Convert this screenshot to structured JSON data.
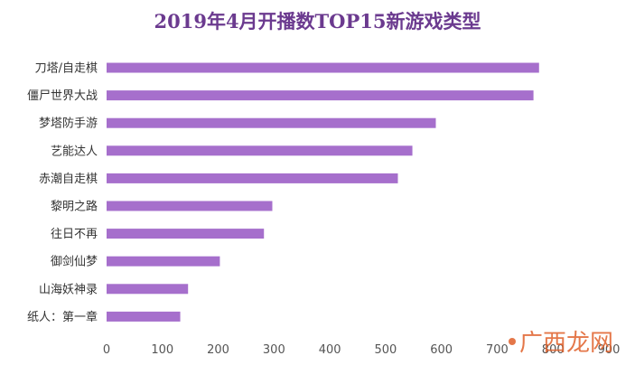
{
  "chart_data": {
    "type": "bar",
    "orientation": "horizontal",
    "title": "2019年4月开播数TOP15新游戏类型",
    "categories": [
      "刀塔/自走棋",
      "僵尸世界大战",
      "梦塔防手游",
      "艺能达人",
      "赤潮自走棋",
      "黎明之路",
      "往日不再",
      "御剑仙梦",
      "山海妖神录",
      "纸人：第一章"
    ],
    "values": [
      775,
      765,
      590,
      548,
      522,
      297,
      282,
      203,
      146,
      132
    ],
    "xlim": [
      0,
      900
    ],
    "xticks": [
      0,
      100,
      200,
      300,
      400,
      500,
      600,
      700,
      800,
      900
    ],
    "grid": false,
    "bar_color": "#a66fcc"
  },
  "watermark": {
    "text": "广西龙网"
  }
}
